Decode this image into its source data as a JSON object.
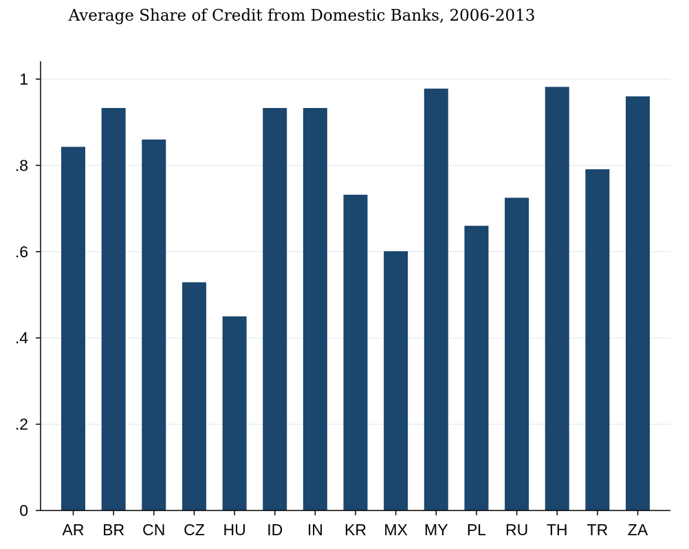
{
  "chart_data": {
    "type": "bar",
    "title": "Average Share of Credit from Domestic Banks, 2006-2013",
    "xlabel": "",
    "ylabel": "",
    "categories": [
      "AR",
      "BR",
      "CN",
      "CZ",
      "HU",
      "ID",
      "IN",
      "KR",
      "MX",
      "MY",
      "PL",
      "RU",
      "TH",
      "TR",
      "ZA"
    ],
    "values": [
      0.843,
      0.933,
      0.86,
      0.529,
      0.45,
      0.933,
      0.933,
      0.732,
      0.601,
      0.978,
      0.66,
      0.725,
      0.982,
      0.791,
      0.96
    ],
    "ylim": [
      0,
      1
    ],
    "yticks": [
      0,
      0.2,
      0.4,
      0.6,
      0.8,
      1
    ],
    "ytick_labels": [
      "0",
      ".2",
      ".4",
      ".6",
      ".8",
      "1"
    ],
    "grid": true,
    "legend": "none",
    "bar_color": "#1b466d",
    "grid_color": "#e6eef0"
  }
}
